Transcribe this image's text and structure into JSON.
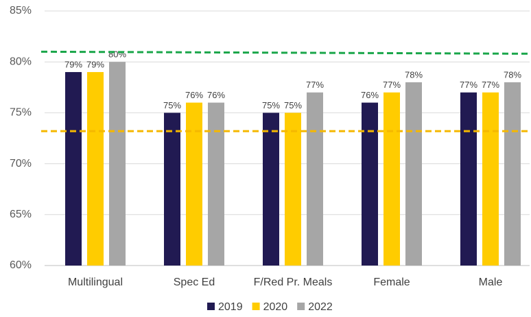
{
  "chart_data": {
    "type": "bar",
    "categories": [
      "Multilingual",
      "Spec Ed",
      "F/Red Pr. Meals",
      "Female",
      "Male"
    ],
    "series": [
      {
        "name": "2019",
        "color": "#211a52",
        "values": [
          79,
          75,
          75,
          76,
          77
        ],
        "value_labels": [
          "79%",
          "75%",
          "75%",
          "76%",
          "77%"
        ]
      },
      {
        "name": "2020",
        "color": "#ffcc00",
        "values": [
          79,
          76,
          75,
          77,
          77
        ],
        "value_labels": [
          "79%",
          "76%",
          "75%",
          "77%",
          "77%"
        ]
      },
      {
        "name": "2022",
        "color": "#a6a6a6",
        "values": [
          80,
          76,
          77,
          78,
          78
        ],
        "value_labels": [
          "80%",
          "76%",
          "77%",
          "78%",
          "78%"
        ]
      }
    ],
    "ylim": [
      60,
      85
    ],
    "yticks": [
      {
        "value": 60,
        "label": "60%"
      },
      {
        "value": 65,
        "label": "65%"
      },
      {
        "value": 70,
        "label": "70%"
      },
      {
        "value": 75,
        "label": "75%"
      },
      {
        "value": 80,
        "label": "80%"
      },
      {
        "value": 85,
        "label": "85%"
      }
    ],
    "grid": true,
    "legend": "bottom",
    "reference_lines": [
      {
        "color": "#1aa64a",
        "values": [
          81.0,
          80.8
        ]
      },
      {
        "color": "#f5b800",
        "values": [
          73.2,
          73.2
        ]
      }
    ]
  }
}
